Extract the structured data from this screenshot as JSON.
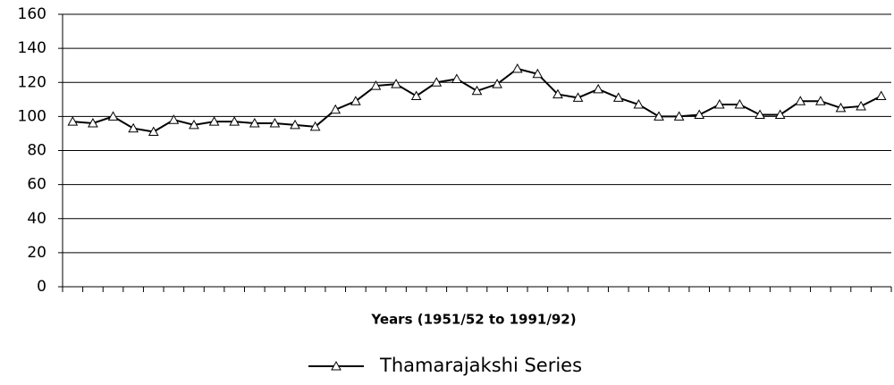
{
  "chart_data": {
    "type": "line",
    "x_label": "Years (1951/52 to 1991/92)",
    "categories": [
      null,
      null,
      null,
      null,
      null,
      null,
      null,
      null,
      null,
      null,
      null,
      null,
      null,
      null,
      null,
      null,
      null,
      null,
      null,
      null,
      null,
      null,
      null,
      null,
      null,
      null,
      null,
      null,
      null,
      null,
      null,
      null,
      null,
      null,
      null,
      null,
      null,
      null,
      null,
      null,
      null
    ],
    "series": [
      {
        "name": "Thamarajakshi Series",
        "color": "#000000",
        "marker": "triangle",
        "values": [
          97,
          96,
          100,
          93,
          91,
          98,
          95,
          97,
          97,
          96,
          96,
          95,
          94,
          104,
          109,
          118,
          119,
          112,
          120,
          122,
          115,
          119,
          128,
          125,
          113,
          111,
          116,
          111,
          107,
          100,
          100,
          101,
          107,
          107,
          101,
          101,
          109,
          109,
          105,
          106,
          112
        ]
      }
    ],
    "ylim": [
      0,
      160
    ],
    "yticks": [
      0,
      20,
      40,
      60,
      80,
      100,
      120,
      140,
      160
    ],
    "grid": true,
    "legend": "bottom"
  }
}
